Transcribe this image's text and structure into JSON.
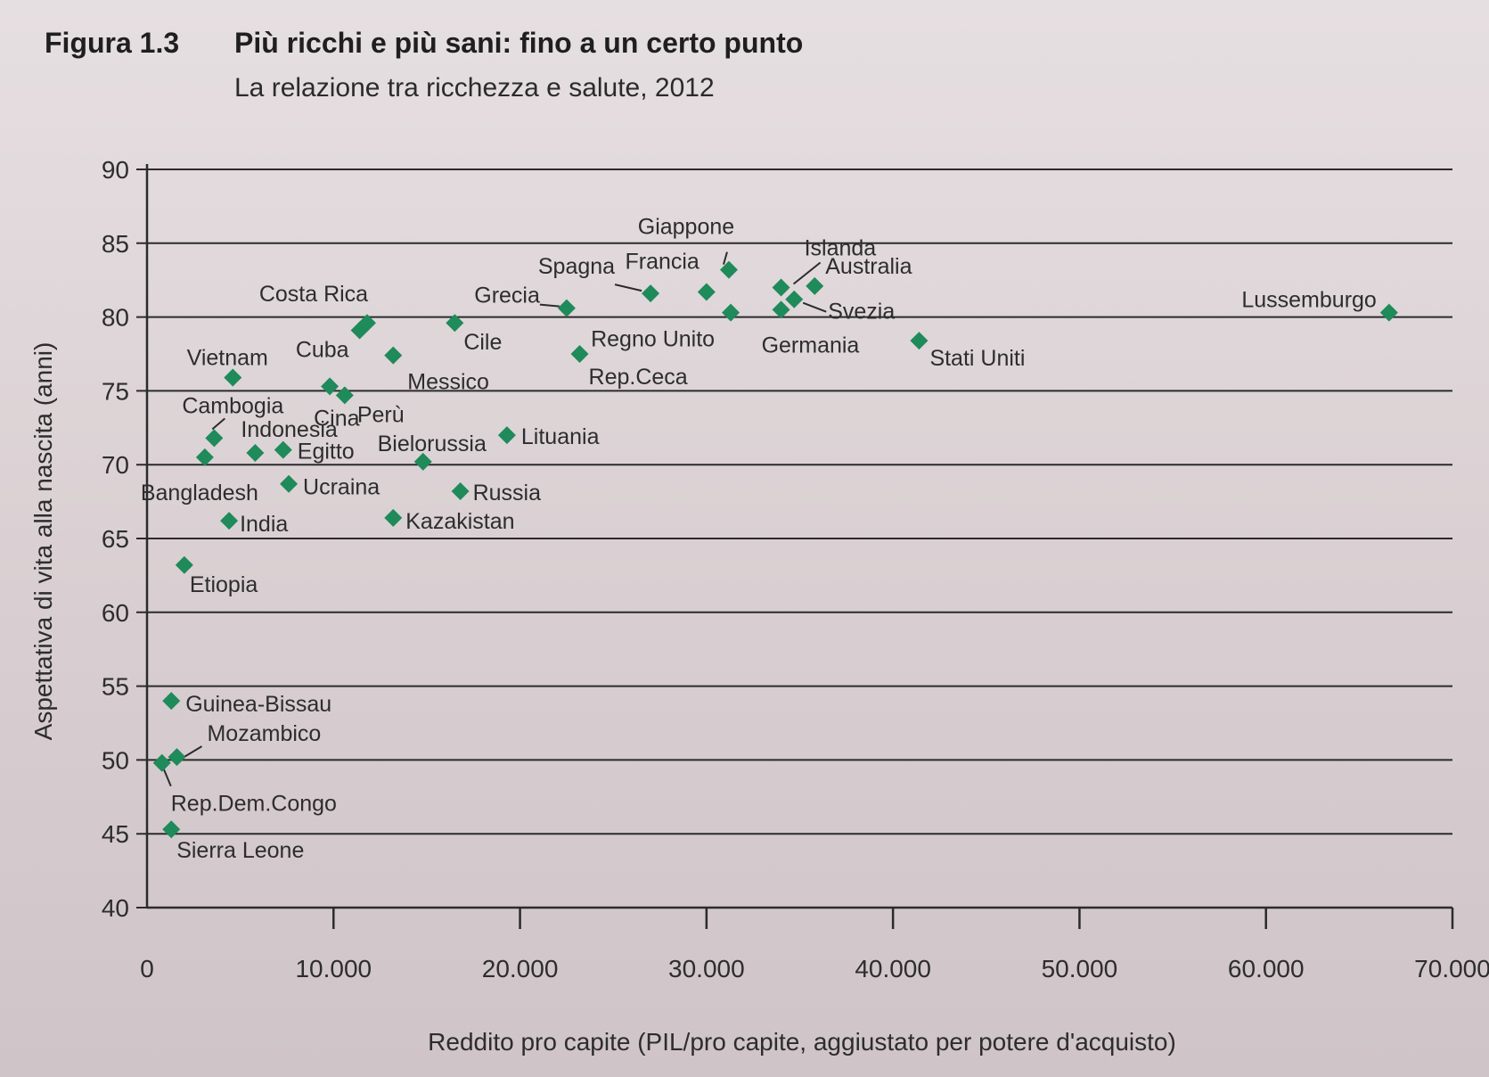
{
  "figure": {
    "number": "Figura 1.3",
    "title": "Più ricchi e più sani: fino a un certo punto",
    "subtitle": "La relazione tra ricchezza e salute, 2012"
  },
  "chart_data": {
    "type": "scatter",
    "xlabel": "Reddito pro capite (PIL/pro capite, aggiustato per potere d'acquisto)",
    "ylabel": "Aspettativa di vita alla nascita (anni)",
    "xlim": [
      0,
      70000
    ],
    "ylim": [
      40,
      90
    ],
    "x_ticks": [
      0,
      10000,
      20000,
      30000,
      40000,
      50000,
      60000,
      70000
    ],
    "x_tick_labels": [
      "0",
      "10.000",
      "20.000",
      "30.000",
      "40.000",
      "50.000",
      "60.000",
      "70.000"
    ],
    "y_ticks": [
      40,
      45,
      50,
      55,
      60,
      65,
      70,
      75,
      80,
      85,
      90
    ],
    "y_tick_labels": [
      "40",
      "45",
      "50",
      "55",
      "60",
      "65",
      "70",
      "75",
      "80",
      "85",
      "90"
    ],
    "grid": "horizontal",
    "marker": "diamond",
    "marker_color": "#1f8a5a",
    "points": [
      {
        "label": "Giappone",
        "x": 31200,
        "y": 83.2
      },
      {
        "label": "Islanda",
        "x": 34000,
        "y": 82.0
      },
      {
        "label": "Australia",
        "x": 35800,
        "y": 82.1
      },
      {
        "label": "Spagna",
        "x": 27000,
        "y": 81.6
      },
      {
        "label": "Francia",
        "x": 30000,
        "y": 81.7
      },
      {
        "label": "Grecia",
        "x": 22500,
        "y": 80.6
      },
      {
        "label": "Svezia",
        "x": 34700,
        "y": 81.2
      },
      {
        "label": "Regno Unito",
        "x": 31300,
        "y": 80.3
      },
      {
        "label": "Germania",
        "x": 34000,
        "y": 80.5
      },
      {
        "label": "Lussemburgo",
        "x": 66600,
        "y": 80.3
      },
      {
        "label": "Costa Rica",
        "x": 11800,
        "y": 79.6
      },
      {
        "label": "Cile",
        "x": 16500,
        "y": 79.6
      },
      {
        "label": "Cuba",
        "x": 11400,
        "y": 79.1
      },
      {
        "label": "Stati Uniti",
        "x": 41400,
        "y": 78.4
      },
      {
        "label": "Messico",
        "x": 13200,
        "y": 77.4
      },
      {
        "label": "Rep.Ceca",
        "x": 23200,
        "y": 77.5
      },
      {
        "label": "Vietnam",
        "x": 4600,
        "y": 75.9
      },
      {
        "label": "Cina",
        "x": 9800,
        "y": 75.3
      },
      {
        "label": "Perù",
        "x": 10600,
        "y": 74.7
      },
      {
        "label": "Cambogia",
        "x": 3600,
        "y": 71.8
      },
      {
        "label": "Indonesia",
        "x": 5800,
        "y": 70.8
      },
      {
        "label": "Egitto",
        "x": 7300,
        "y": 71.0
      },
      {
        "label": "Bielorussia",
        "x": 14800,
        "y": 70.2
      },
      {
        "label": "Lituania",
        "x": 19300,
        "y": 72.0
      },
      {
        "label": "Bangladesh",
        "x": 3100,
        "y": 70.5
      },
      {
        "label": "Ucraina",
        "x": 7600,
        "y": 68.7
      },
      {
        "label": "Russia",
        "x": 16800,
        "y": 68.2
      },
      {
        "label": "India",
        "x": 4400,
        "y": 66.2
      },
      {
        "label": "Kazakistan",
        "x": 13200,
        "y": 66.4
      },
      {
        "label": "Etiopia",
        "x": 2000,
        "y": 63.2
      },
      {
        "label": "Guinea-Bissau",
        "x": 1300,
        "y": 54.0
      },
      {
        "label": "Mozambico",
        "x": 1600,
        "y": 50.2
      },
      {
        "label": "Rep.Dem.Congo",
        "x": 800,
        "y": 49.8
      },
      {
        "label": "Sierra Leone",
        "x": 1300,
        "y": 45.3
      }
    ]
  }
}
